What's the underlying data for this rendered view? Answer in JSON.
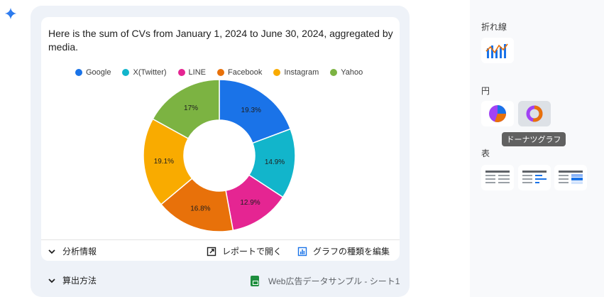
{
  "message": {
    "summary": "Here is the sum of CVs from January 1, 2024 to June 30, 2024, aggregated by media."
  },
  "chart_data": {
    "type": "pie",
    "subtype": "donut",
    "legend_position": "top",
    "categories": [
      "Google",
      "X(Twitter)",
      "LINE",
      "Facebook",
      "Instagram",
      "Yahoo"
    ],
    "values": [
      19.3,
      14.9,
      12.9,
      16.8,
      19.1,
      17.0
    ],
    "labels": [
      "19.3%",
      "14.9%",
      "12.9%",
      "16.8%",
      "19.1%",
      "17%"
    ],
    "colors": [
      "#1a73e8",
      "#12b5cb",
      "#e52592",
      "#e8710a",
      "#f9ab00",
      "#7cb342"
    ]
  },
  "footer": {
    "analysis_label": "分析情報",
    "open_report_label": "レポートで開く",
    "edit_chart_label": "グラフの種類を編集"
  },
  "calc": {
    "label": "算出方法",
    "sheet_label": "Web広告データサンプル - シート1"
  },
  "side_panel": {
    "line_section": "折れ線",
    "pie_section": "円",
    "table_section": "表",
    "tooltip": "ドーナツグラフ"
  }
}
